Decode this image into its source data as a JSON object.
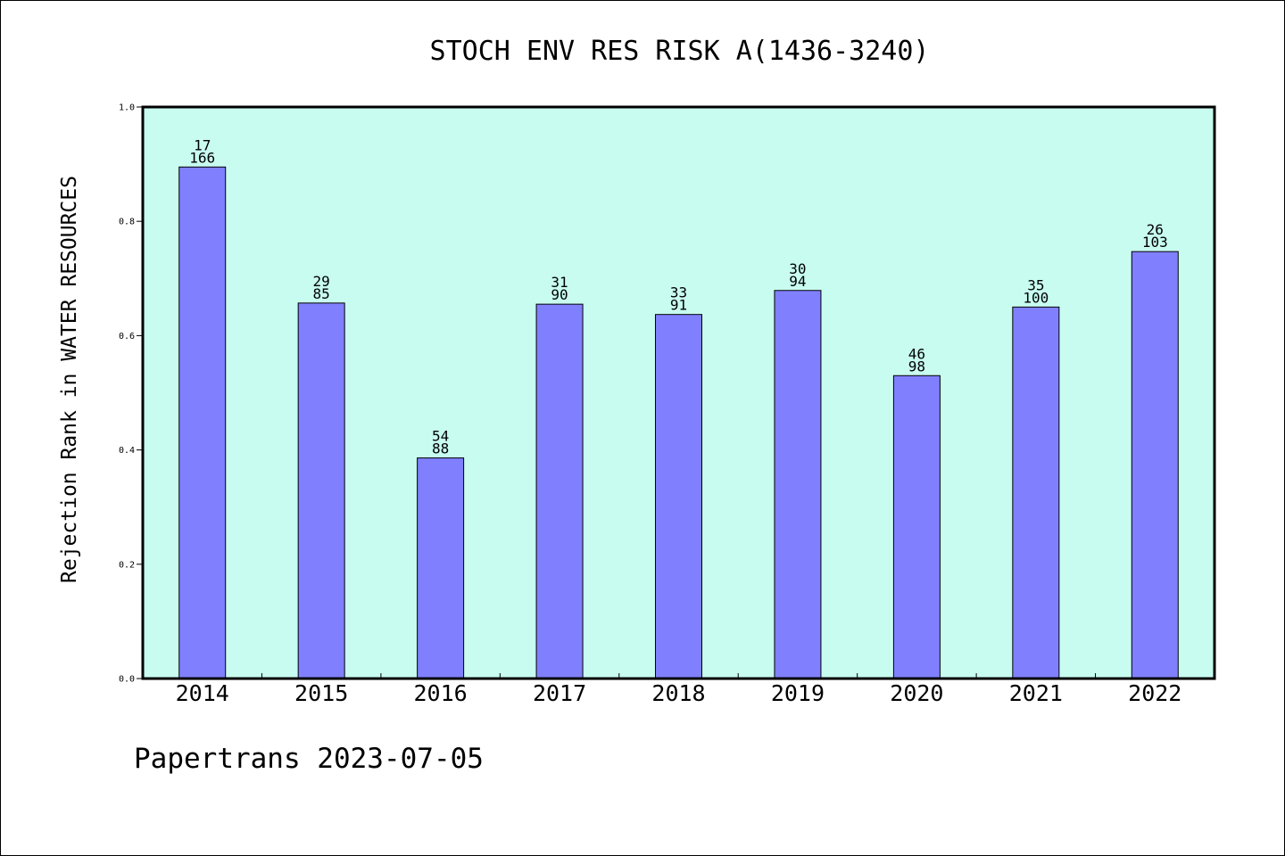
{
  "chart_data": {
    "type": "bar",
    "title": "STOCH ENV RES RISK A(1436-3240)",
    "xlabel": "",
    "ylabel": "Rejection Rank in WATER RESOURCES",
    "categories": [
      "2014",
      "2015",
      "2016",
      "2017",
      "2018",
      "2019",
      "2020",
      "2021",
      "2022"
    ],
    "values": [
      0.895,
      0.657,
      0.386,
      0.655,
      0.637,
      0.679,
      0.53,
      0.65,
      0.747
    ],
    "label_top": [
      "17",
      "29",
      "54",
      "31",
      "33",
      "30",
      "46",
      "35",
      "26"
    ],
    "label_bottom": [
      "166",
      "85",
      "88",
      "90",
      "91",
      "94",
      "98",
      "100",
      "103"
    ],
    "ylim": [
      0,
      1.0
    ],
    "yticks": [
      "0.0",
      "0.2",
      "0.4",
      "0.6",
      "0.8",
      "1.0"
    ],
    "grid": false,
    "colors": {
      "bar": "#8080ff",
      "plot_background": "#c8fcf0",
      "axis": "#000000"
    }
  },
  "footer": {
    "note": "Papertrans 2023-07-05"
  }
}
